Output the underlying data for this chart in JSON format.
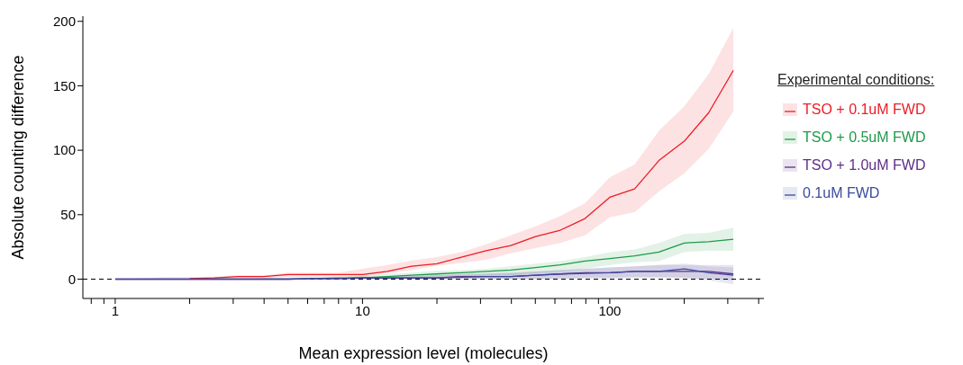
{
  "chart_data": {
    "type": "line",
    "xlabel": "Mean expression level (molecules)",
    "ylabel": "Absolute counting difference",
    "legend_title": "Experimental conditions:",
    "legend": "right",
    "log": "x",
    "line_style": "solid",
    "x": [
      1,
      1.26,
      1.58,
      2,
      2.51,
      3.16,
      3.98,
      5.01,
      6.31,
      7.94,
      10,
      12.6,
      15.8,
      20,
      25.1,
      31.6,
      39.8,
      50.1,
      63.1,
      79.4,
      100,
      126,
      158,
      200,
      251,
      316
    ],
    "xlim": [
      0.74,
      420
    ],
    "xticks": [
      {
        "value": 0.8,
        "label": null
      },
      {
        "value": 0.9,
        "label": null
      },
      1,
      {
        "value": 2,
        "label": null
      },
      {
        "value": 3,
        "label": null
      },
      {
        "value": 4,
        "label": null
      },
      {
        "value": 5,
        "label": null
      },
      {
        "value": 6,
        "label": null
      },
      {
        "value": 7,
        "label": null
      },
      {
        "value": 8,
        "label": null
      },
      {
        "value": 9,
        "label": null
      },
      10,
      {
        "value": 20,
        "label": null
      },
      {
        "value": 30,
        "label": null
      },
      {
        "value": 40,
        "label": null
      },
      {
        "value": 50,
        "label": null
      },
      {
        "value": 60,
        "label": null
      },
      {
        "value": 70,
        "label": null
      },
      {
        "value": 80,
        "label": null
      },
      {
        "value": 90,
        "label": null
      },
      100,
      {
        "value": 200,
        "label": null
      },
      {
        "value": 300,
        "label": null
      },
      {
        "value": 400,
        "label": null
      }
    ],
    "ylim": [
      -15,
      204
    ],
    "yticks": [
      0,
      50,
      100,
      150,
      200
    ],
    "ref_lines": [
      {
        "axis": "y",
        "value": 0,
        "line_style": "dashed",
        "color": "#000000"
      }
    ],
    "series": [
      {
        "name": "TSO + 0.1uM FWD",
        "color": "#ec1c24",
        "values": [
          null,
          null,
          null,
          0.5,
          1,
          2,
          2,
          3.6,
          3.6,
          3.6,
          3.6,
          6,
          10,
          12,
          17,
          22,
          26,
          33,
          38,
          47,
          63.5,
          70,
          92,
          107,
          129,
          162
        ],
        "lower": [
          0,
          0,
          0,
          0,
          0,
          0.5,
          0.5,
          2,
          2,
          2,
          2,
          4.6,
          7,
          10.5,
          12.5,
          15,
          20,
          24,
          28,
          34,
          48,
          52,
          68,
          82,
          101,
          130
        ],
        "upper": [
          0,
          0.5,
          1.5,
          1.5,
          2,
          3,
          3,
          5,
          5,
          5,
          8,
          11,
          14.5,
          17,
          21,
          27,
          34,
          41,
          49,
          59,
          79,
          89,
          115,
          134,
          159,
          195
        ]
      },
      {
        "name": "TSO + 0.5uM FWD",
        "color": "#1e9a48",
        "values": [
          null,
          null,
          null,
          null,
          null,
          null,
          null,
          null,
          0.5,
          1,
          1,
          2,
          3,
          4,
          5,
          6,
          7,
          9,
          11,
          14,
          16,
          18,
          21,
          28,
          29,
          31
        ],
        "lower": [
          0,
          0,
          0,
          0,
          0,
          0,
          0,
          0,
          0,
          0,
          0,
          0.5,
          1,
          1.5,
          2,
          2.6,
          3,
          4.6,
          6,
          8,
          11,
          13,
          14,
          21,
          22,
          22
        ],
        "upper": [
          0,
          0,
          0,
          0,
          0.5,
          0.5,
          0.5,
          1,
          1.5,
          2,
          3,
          4,
          5,
          6.5,
          7,
          8,
          10,
          12,
          14,
          17,
          21,
          23,
          28,
          35,
          36,
          40
        ]
      },
      {
        "name": "TSO + 1.0uM FWD",
        "color": "#5e2d86",
        "values": [
          0,
          0,
          0,
          0,
          0,
          0,
          0,
          0,
          0.5,
          0.5,
          1,
          1,
          1,
          1,
          2,
          2,
          2,
          3,
          4,
          5,
          5,
          6,
          6,
          6,
          6,
          4
        ],
        "lower": [
          0,
          0,
          0,
          0,
          0,
          0,
          0,
          0,
          0,
          0,
          0,
          0,
          0,
          0,
          0,
          0,
          0,
          0,
          0.5,
          1,
          1,
          1.5,
          1.5,
          1,
          0,
          -1
        ],
        "upper": [
          0,
          0,
          0,
          0,
          0,
          0,
          0.5,
          0.5,
          1,
          1,
          2,
          2,
          2.5,
          3,
          4,
          4.5,
          5,
          6,
          7,
          8,
          9,
          10,
          11,
          11,
          11,
          11
        ]
      },
      {
        "name": "0.1uM FWD",
        "color": "#3c4a9e",
        "values": [
          0,
          0,
          0,
          0,
          0,
          0,
          0,
          0,
          0.5,
          0.5,
          1,
          1,
          1,
          1,
          1.5,
          2,
          2,
          3,
          4,
          4.5,
          5,
          6,
          6,
          8,
          5,
          3
        ],
        "lower": [
          0,
          0,
          0,
          0,
          0,
          0,
          0,
          0,
          0,
          0,
          0,
          0,
          0,
          0,
          0,
          0,
          0,
          0,
          0,
          0.5,
          0.5,
          1,
          1,
          1,
          -1,
          -4
        ],
        "upper": [
          0,
          0,
          0,
          0,
          0,
          0,
          0.5,
          0.5,
          1,
          1,
          2,
          2,
          2.5,
          3,
          3.5,
          4,
          4.5,
          6,
          7,
          8,
          9,
          10,
          11,
          12,
          10,
          9
        ]
      }
    ]
  }
}
